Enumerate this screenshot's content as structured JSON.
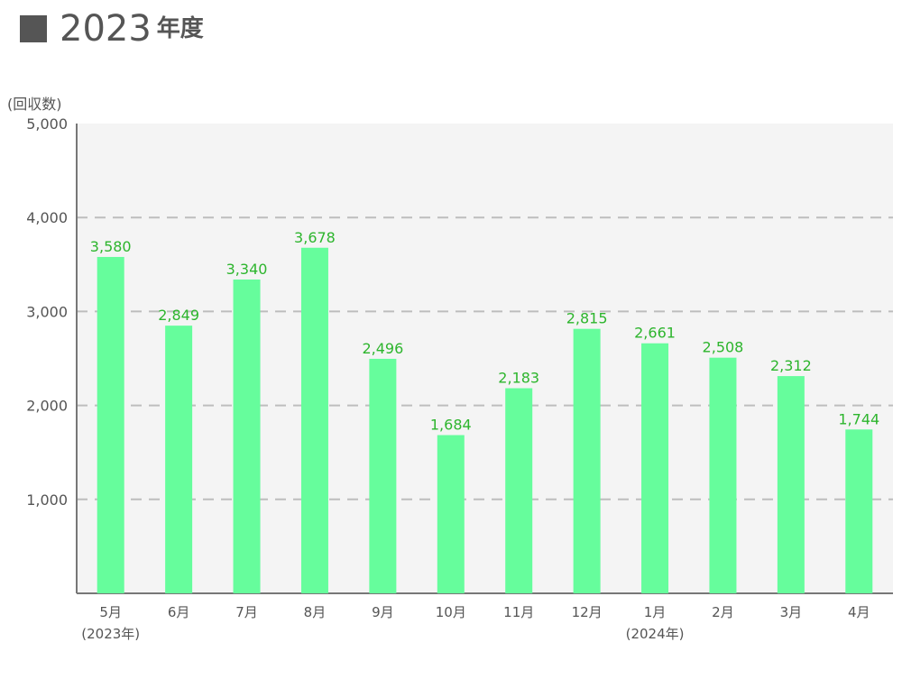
{
  "header": {
    "year": "2023",
    "suffix": "年度"
  },
  "chart_data": {
    "type": "bar",
    "ylabel": "(回収数)",
    "categories": [
      "5月",
      "6月",
      "7月",
      "8月",
      "9月",
      "10月",
      "11月",
      "12月",
      "1月",
      "2月",
      "3月",
      "4月"
    ],
    "category_sublabels": [
      "(2023年)",
      "",
      "",
      "",
      "",
      "",
      "",
      "",
      "(2024年)",
      "",
      "",
      ""
    ],
    "values": [
      3580,
      2849,
      3340,
      3678,
      2496,
      1684,
      2183,
      2815,
      2661,
      2508,
      2312,
      1744
    ],
    "data_labels": [
      "3,580",
      "2,849",
      "3,340",
      "3,678",
      "2,496",
      "1,684",
      "2,183",
      "2,815",
      "2,661",
      "2,508",
      "2,312",
      "1,744"
    ],
    "ylim": [
      0,
      5000
    ],
    "yticks": [
      1000,
      2000,
      3000,
      4000,
      5000
    ],
    "ytick_labels": [
      "1,000",
      "2,000",
      "3,000",
      "4,000",
      "5,000"
    ],
    "grid": true,
    "colors": {
      "bar": "#66fd9c",
      "label": "#2db52d",
      "plot_bg": "#f4f4f4",
      "grid": "#bdbdbd",
      "axis": "#777777",
      "text": "#555555"
    }
  }
}
